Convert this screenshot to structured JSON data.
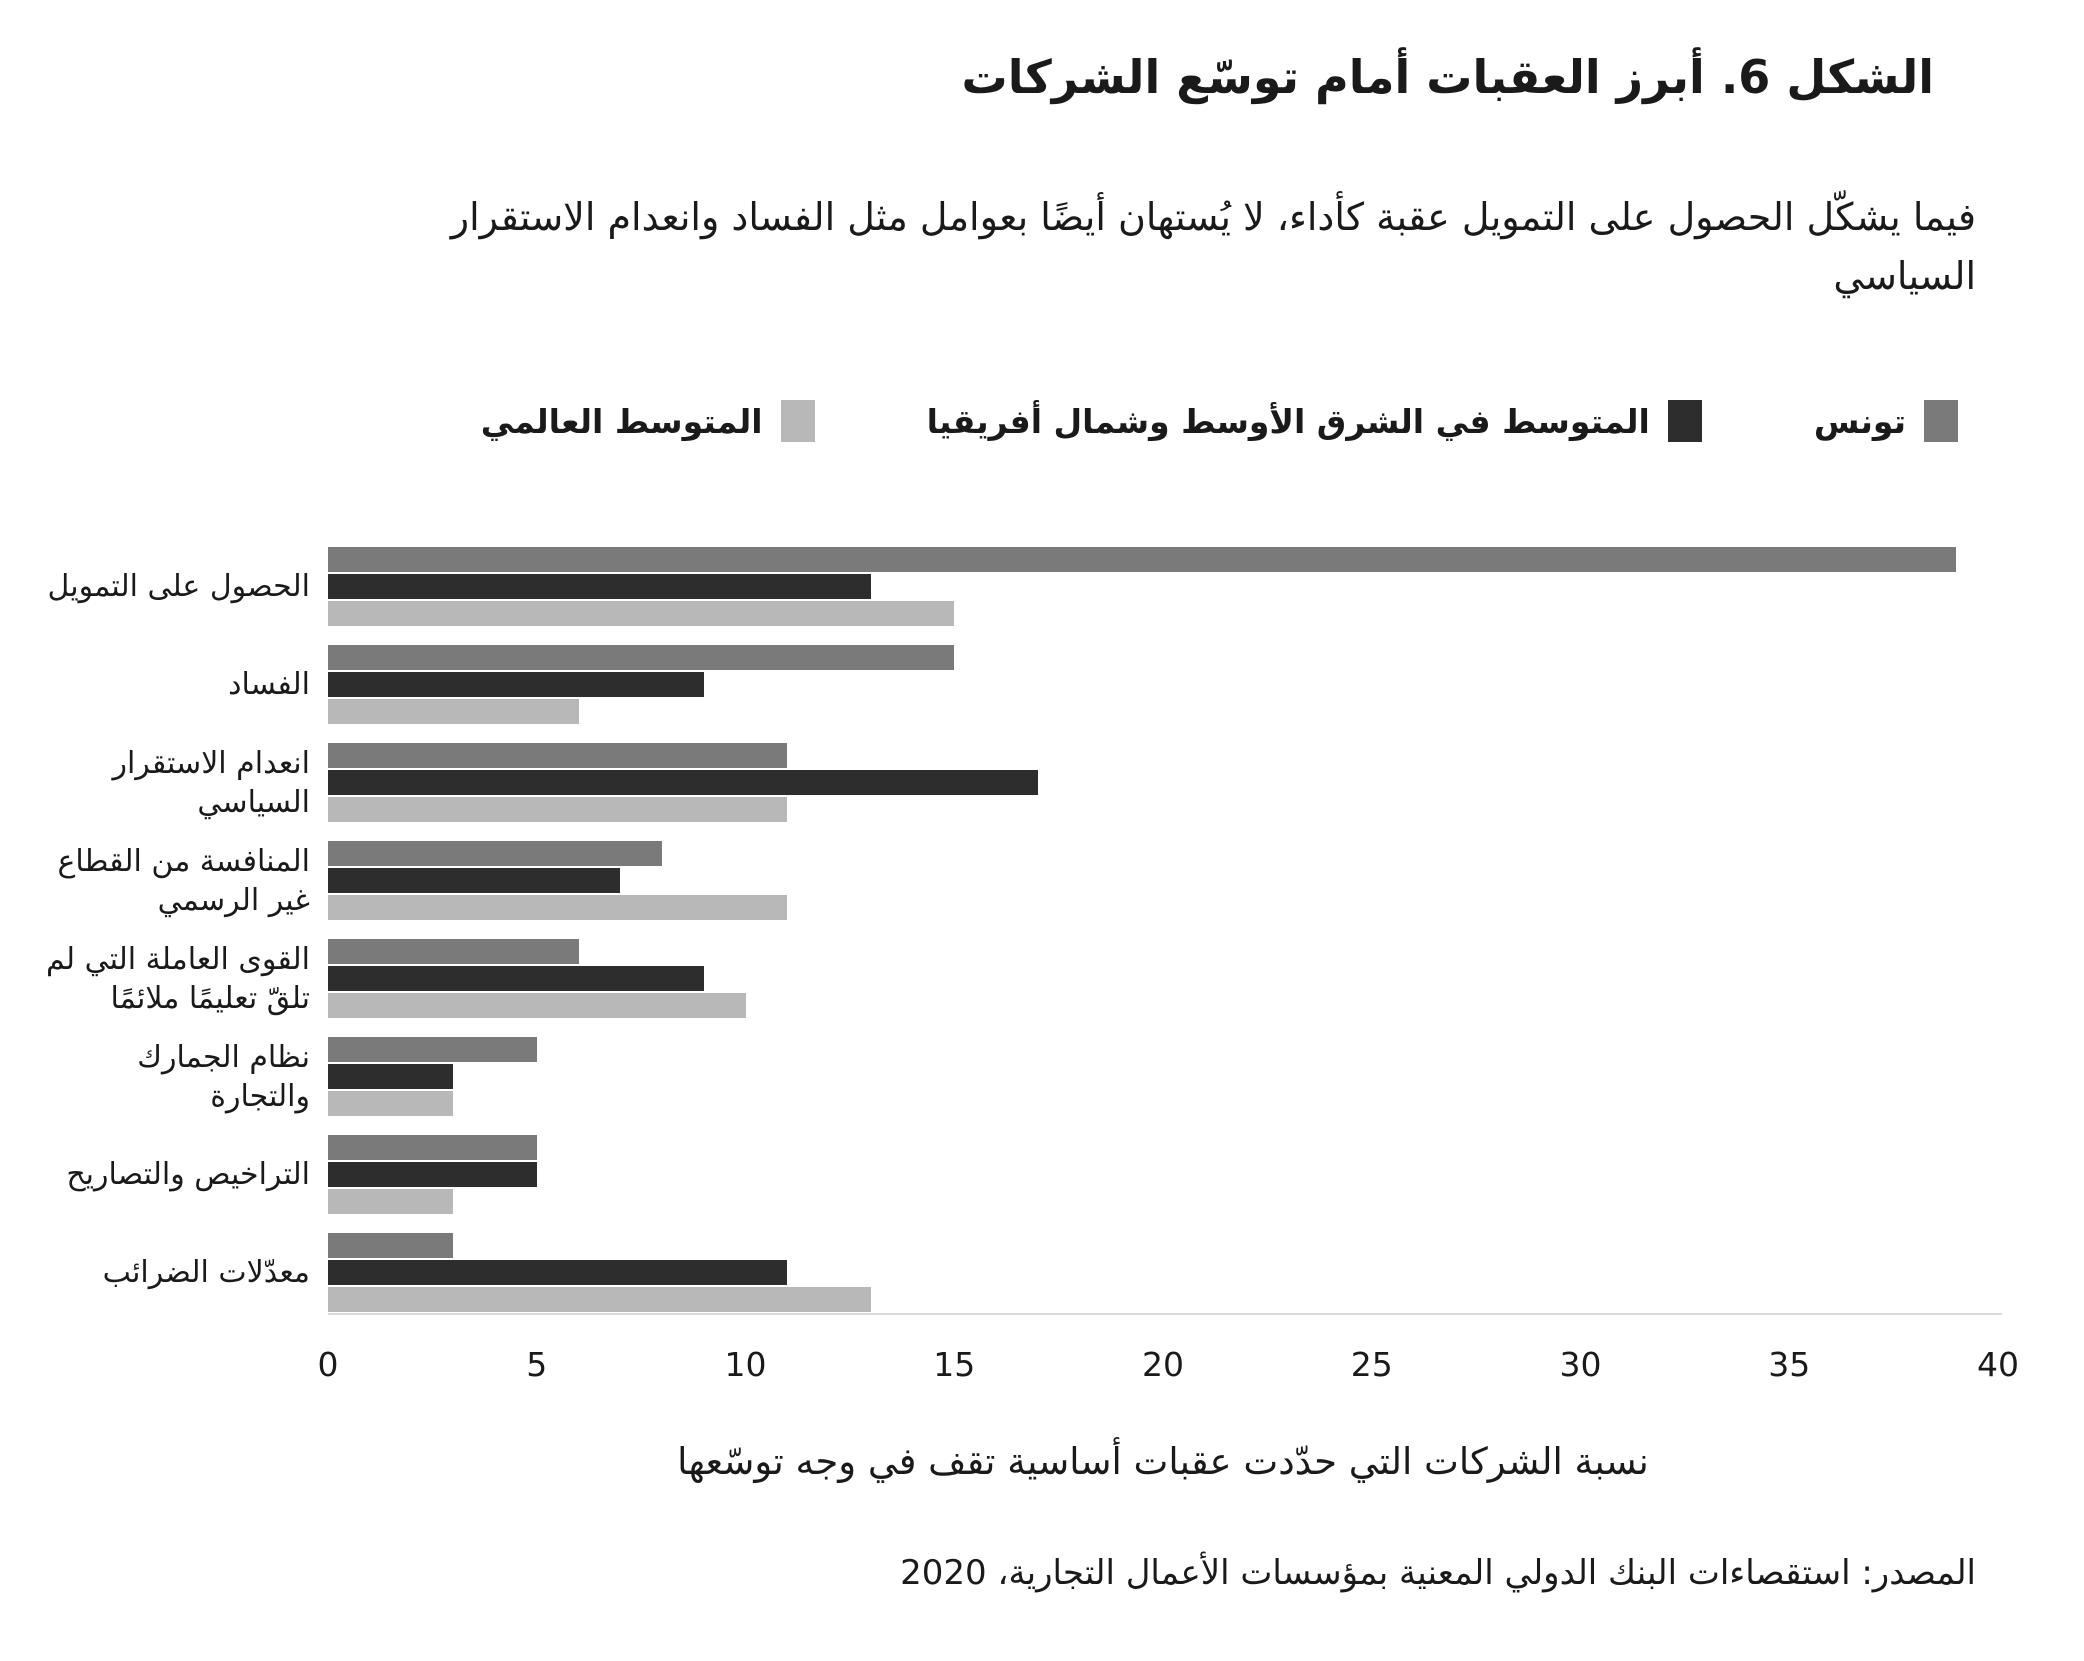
{
  "title": "الشكل 6. أبرز العقبات أمام توسّع الشركات",
  "subtitle": "فيما يشكّل الحصول على التمويل عقبة كأداء، لا يُستهان أيضًا بعوامل مثل الفساد وانعدام الاستقرار السياسي",
  "legend": [
    {
      "key": "tunisia",
      "label": "تونس",
      "color": "#7a7a7a"
    },
    {
      "key": "mena-average",
      "label": "المتوسط في الشرق الأوسط وشمال أفريقيا",
      "color": "#2d2d2d"
    },
    {
      "key": "global-average",
      "label": "المتوسط العالمي",
      "color": "#b8b8b8"
    }
  ],
  "chart_data": {
    "type": "bar",
    "orientation": "horizontal",
    "title": "الشكل 6. أبرز العقبات أمام توسّع الشركات",
    "xlabel": "نسبة الشركات التي حدّدت عقبات أساسية تقف في وجه توسّعها",
    "ylabel": "",
    "xlim": [
      0,
      40
    ],
    "xticks": [
      0,
      5,
      10,
      15,
      20,
      25,
      30,
      35,
      40
    ],
    "grid": false,
    "legend_position": "top",
    "categories": [
      "الحصول على التمويل",
      "الفساد",
      "انعدام الاستقرار السياسي",
      "المنافسة من القطاع غير الرسمي",
      "القوى العاملة التي لم تلقّ تعليمًا ملائمًا",
      "نظام الجمارك والتجارة",
      "التراخيص والتصاريح",
      "معدّلات الضرائب"
    ],
    "series": [
      {
        "key": "tunisia",
        "name": "تونس",
        "color": "#7a7a7a",
        "values": [
          39,
          15,
          11,
          8,
          6,
          5,
          5,
          3
        ]
      },
      {
        "key": "mena-average",
        "name": "المتوسط في الشرق الأوسط وشمال أفريقيا",
        "color": "#2d2d2d",
        "values": [
          13,
          9,
          17,
          7,
          9,
          3,
          5,
          11
        ]
      },
      {
        "key": "global-average",
        "name": "المتوسط العالمي",
        "color": "#b8b8b8",
        "values": [
          15,
          6,
          11,
          11,
          10,
          3,
          3,
          13
        ]
      }
    ]
  },
  "axis": {
    "line_color": "#d9d9d9"
  },
  "source": "المصدر: استقصاءات البنك الدولي المعنية بمؤسسات الأعمال التجارية، 2020"
}
